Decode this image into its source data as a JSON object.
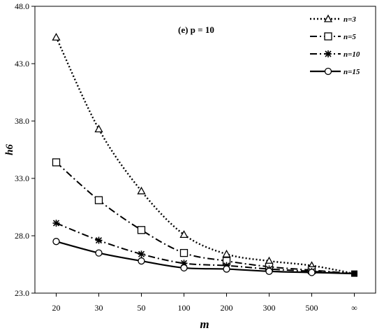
{
  "chart_data": {
    "type": "line",
    "categories": [
      "20",
      "30",
      "50",
      "100",
      "200",
      "300",
      "500",
      "∞"
    ],
    "xlabel": "m",
    "ylabel": "h6",
    "annotation": "(e) p = 10",
    "ylim": [
      23.0,
      48.0
    ],
    "yticks": [
      "23.0",
      "28.0",
      "33.0",
      "38.0",
      "43.0",
      "48.0"
    ],
    "grid": false,
    "legend_position": "top-right",
    "series": [
      {
        "name": "n=3",
        "marker": "triangle",
        "line_style": "dotted",
        "values": [
          45.3,
          37.3,
          31.9,
          28.1,
          26.4,
          25.8,
          25.4,
          24.7
        ]
      },
      {
        "name": "n=5",
        "marker": "square",
        "line_style": "dash-dot",
        "values": [
          34.4,
          31.1,
          28.5,
          26.5,
          25.8,
          25.3,
          25.0,
          24.7
        ]
      },
      {
        "name": "n=10",
        "marker": "star",
        "line_style": "dash-dot",
        "values": [
          29.1,
          27.6,
          26.4,
          25.6,
          25.4,
          25.1,
          24.9,
          24.7
        ]
      },
      {
        "name": "n=15",
        "marker": "circle",
        "line_style": "solid",
        "values": [
          27.5,
          26.5,
          25.8,
          25.2,
          25.1,
          24.9,
          24.8,
          24.7
        ]
      }
    ]
  }
}
